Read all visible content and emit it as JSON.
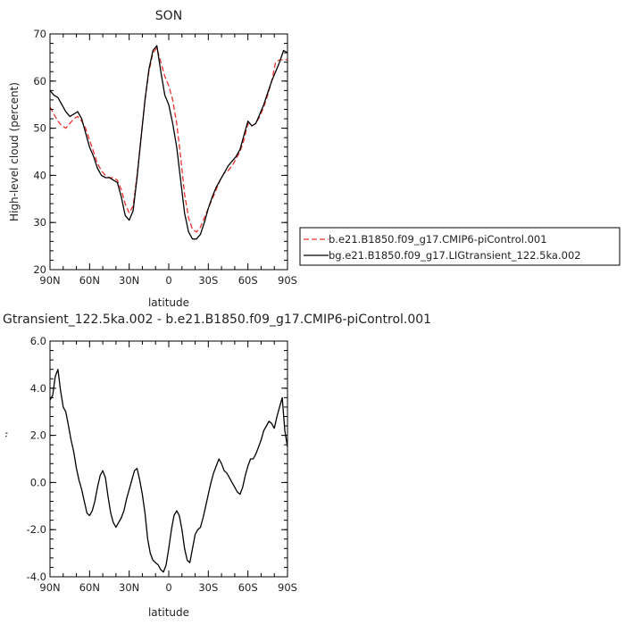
{
  "chart_data": [
    {
      "type": "line",
      "title": "SON",
      "xlabel": "latitude",
      "ylabel": "High-level cloud (percent)",
      "xlim": [
        90,
        -90
      ],
      "ylim": [
        20,
        70
      ],
      "x_ticks": [
        90,
        60,
        30,
        0,
        -30,
        -60,
        -90
      ],
      "x_tick_labels": [
        "90N",
        "60N",
        "30N",
        "0",
        "30S",
        "60S",
        "90S"
      ],
      "y_ticks": [
        20,
        30,
        40,
        50,
        60,
        70
      ],
      "y_tick_labels": [
        "20",
        "30",
        "40",
        "50",
        "60",
        "70"
      ],
      "legend_position": "right",
      "series": [
        {
          "name": "b.e21.B1850.f09_g17.CMIP6-piControl.001",
          "color": "#e8322c",
          "dash": "dashed",
          "x": [
            90,
            87,
            84,
            81,
            78,
            75,
            72,
            69,
            66,
            63,
            60,
            57,
            54,
            51,
            48,
            45,
            42,
            39,
            36,
            33,
            30,
            27,
            24,
            21,
            18,
            15,
            12,
            9,
            6,
            3,
            0,
            -3,
            -6,
            -9,
            -12,
            -15,
            -18,
            -21,
            -24,
            -27,
            -30,
            -33,
            -36,
            -39,
            -42,
            -45,
            -48,
            -51,
            -54,
            -57,
            -60,
            -63,
            -66,
            -69,
            -72,
            -75,
            -78,
            -81,
            -84,
            -87,
            -90
          ],
          "y": [
            54.5,
            53,
            51.5,
            50.5,
            50,
            51,
            52,
            52.5,
            51.5,
            50,
            47.5,
            45,
            42.5,
            41,
            40,
            39.5,
            39.5,
            39,
            37,
            34,
            32,
            33.5,
            40,
            48,
            56,
            62,
            66,
            67,
            64,
            61,
            59,
            56,
            51,
            44,
            36,
            31,
            28.5,
            28,
            29,
            31,
            33,
            35,
            37,
            39,
            40.5,
            41,
            42,
            43.5,
            45,
            47.5,
            51,
            50.5,
            51,
            52.5,
            54.5,
            57,
            60,
            64,
            64.5,
            64.5,
            64.5
          ]
        },
        {
          "name": "bg.e21.B1850.f09_g17.LIGtransient_122.5ka.002",
          "color": "#000000",
          "dash": "solid",
          "x": [
            90,
            87,
            84,
            81,
            78,
            75,
            72,
            69,
            66,
            63,
            60,
            57,
            54,
            51,
            48,
            45,
            42,
            39,
            36,
            33,
            30,
            27,
            24,
            21,
            18,
            15,
            12,
            9,
            6,
            3,
            0,
            -3,
            -6,
            -9,
            -12,
            -15,
            -18,
            -21,
            -24,
            -27,
            -30,
            -33,
            -36,
            -39,
            -42,
            -45,
            -48,
            -51,
            -54,
            -57,
            -60,
            -63,
            -66,
            -69,
            -72,
            -75,
            -78,
            -81,
            -84,
            -87,
            -90
          ],
          "y": [
            58,
            57,
            56.5,
            55,
            53.5,
            52.5,
            53,
            53.5,
            52,
            49,
            46,
            44,
            41.5,
            40,
            39.5,
            39.5,
            39,
            38.5,
            35.5,
            31.5,
            30.5,
            32.5,
            39.5,
            48,
            56,
            62.5,
            66.5,
            67.5,
            62,
            57,
            55,
            51,
            46,
            39,
            32,
            28,
            26.5,
            26.5,
            27.5,
            30,
            33,
            35.5,
            37.5,
            39,
            40.5,
            42,
            43,
            44,
            45.5,
            48.5,
            51.5,
            50.5,
            51,
            53,
            55,
            57.5,
            60,
            62,
            64,
            66.5,
            66
          ]
        }
      ]
    },
    {
      "type": "line",
      "title": "Gtransient_122.5ka.002 - b.e21.B1850.f09_g17.CMIP6-piControl.001",
      "xlabel": "latitude",
      "ylabel": "High-level cloud (percent)",
      "xlim": [
        90,
        -90
      ],
      "ylim": [
        -4.0,
        6.0
      ],
      "x_ticks": [
        90,
        60,
        30,
        0,
        -30,
        -60,
        -90
      ],
      "x_tick_labels": [
        "90N",
        "60N",
        "30N",
        "0",
        "30S",
        "60S",
        "90S"
      ],
      "y_ticks": [
        -4,
        -2,
        0,
        2,
        4,
        6
      ],
      "y_tick_labels": [
        "-4.0",
        "-2.0",
        "0.0",
        "2.0",
        "4.0",
        "6.0"
      ],
      "series": [
        {
          "color": "#000000",
          "dash": "solid",
          "x": [
            90,
            88,
            86,
            84,
            82,
            80,
            78,
            76,
            74,
            72,
            70,
            68,
            66,
            64,
            62,
            60,
            58,
            56,
            54,
            52,
            50,
            48,
            46,
            44,
            42,
            40,
            38,
            36,
            34,
            32,
            30,
            28,
            26,
            24,
            22,
            20,
            18,
            16,
            14,
            12,
            10,
            8,
            6,
            4,
            2,
            0,
            -2,
            -4,
            -6,
            -8,
            -10,
            -12,
            -14,
            -16,
            -18,
            -20,
            -22,
            -24,
            -26,
            -28,
            -30,
            -32,
            -34,
            -36,
            -38,
            -40,
            -42,
            -44,
            -46,
            -48,
            -50,
            -52,
            -54,
            -56,
            -58,
            -60,
            -62,
            -64,
            -66,
            -68,
            -70,
            -72,
            -74,
            -76,
            -78,
            -80,
            -82,
            -84,
            -86,
            -88,
            -90
          ],
          "y": [
            3.5,
            3.7,
            4.5,
            4.8,
            3.9,
            3.2,
            3.0,
            2.4,
            1.8,
            1.3,
            0.6,
            0.1,
            -0.3,
            -0.8,
            -1.3,
            -1.4,
            -1.2,
            -0.8,
            -0.2,
            0.3,
            0.5,
            0.2,
            -0.6,
            -1.3,
            -1.7,
            -1.9,
            -1.7,
            -1.5,
            -1.2,
            -0.7,
            -0.3,
            0.1,
            0.5,
            0.6,
            0.1,
            -0.5,
            -1.3,
            -2.4,
            -3.0,
            -3.3,
            -3.4,
            -3.5,
            -3.7,
            -3.8,
            -3.5,
            -2.8,
            -2.0,
            -1.4,
            -1.2,
            -1.4,
            -2.0,
            -2.8,
            -3.3,
            -3.4,
            -2.8,
            -2.2,
            -2.0,
            -1.9,
            -1.5,
            -1.0,
            -0.5,
            0.0,
            0.4,
            0.7,
            1.0,
            0.8,
            0.5,
            0.4,
            0.2,
            0.0,
            -0.2,
            -0.4,
            -0.5,
            -0.2,
            0.3,
            0.7,
            1.0,
            1.0,
            1.2,
            1.5,
            1.8,
            2.2,
            2.4,
            2.6,
            2.5,
            2.3,
            2.8,
            3.2,
            3.6,
            2.2,
            1.5
          ]
        }
      ]
    }
  ]
}
